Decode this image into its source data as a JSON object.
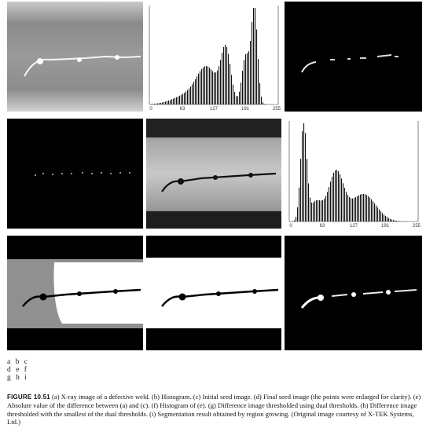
{
  "panel_key": [
    [
      "a",
      "b",
      "c"
    ],
    [
      "d",
      "e",
      "f"
    ],
    [
      "g",
      "h",
      "i"
    ]
  ],
  "histogram_b": {
    "ticks": [
      "0",
      "63",
      "127",
      "191",
      "255"
    ]
  },
  "histogram_f": {
    "ticks": [
      "0",
      "63",
      "127",
      "191",
      "255"
    ]
  },
  "caption": {
    "label": "FIGURE 10.51",
    "text": "(a) X-ray image of a defective weld. (b) Histogram. (c) Initial seed image. (d) Final seed image (the points were enlarged for clarity). (e) Absolute value of the difference between (a) and (c). (f) Histogram of (e). (g) Difference image thresholded using dual thresholds. (h) Difference image thresholded with the smallest of the dual thresholds. (i) Segmentation result obtained by region growing. (Original image courtesy of X-TEK Systems, Ltd.)"
  }
}
